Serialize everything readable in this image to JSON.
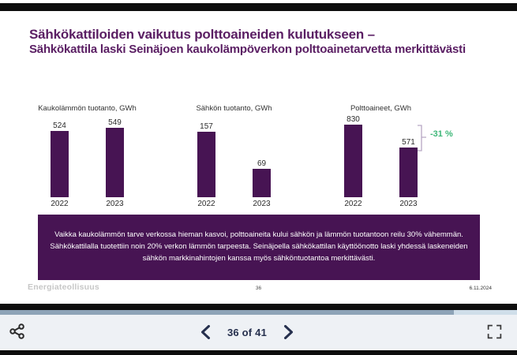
{
  "viewer": {
    "page_indicator": "36 of 41",
    "progress": {
      "current": 36,
      "total": 41
    },
    "icons": {
      "share": "share-icon",
      "prev": "chevron-left-icon",
      "next": "chevron-right-icon",
      "fullscreen": "fullscreen-icon"
    }
  },
  "slide": {
    "title_line1": "Sähkökattiloiden vaikutus polttoaineiden kulutukseen –",
    "title_line2": "Sähkökattila laski Seinäjoen kaukolämpöverkon polttoainetarvetta merkittävästi",
    "callout_text": "Vaikka kaukolämmön tarve verkossa hieman kasvoi, polttoaineita kului sähkön ja lämmön tuotantoon reilu 30% vähemmän. Sähkökattilalla tuotettiin noin 20% verkon lämmön tarpeesta. Seinäjoella sähkökattilan käyttöönotto laski yhdessä laskeneiden sähkön markkinahintojen kanssa myös sähköntuotantoa merkittävästi.",
    "footer": {
      "brand": "Energiateollisuus",
      "page_number": "36",
      "date": "6.11.2024"
    }
  },
  "chart_data": [
    {
      "type": "bar",
      "title": "Kaukolämmön tuotanto, GWh",
      "categories": [
        "2022",
        "2023"
      ],
      "values": [
        524,
        549
      ],
      "bar_color": "#471453",
      "legend": "none",
      "grid": false
    },
    {
      "type": "bar",
      "title": "Sähkön tuotanto, GWh",
      "categories": [
        "2022",
        "2023"
      ],
      "values": [
        157,
        69
      ],
      "bar_color": "#471453",
      "legend": "none",
      "grid": false
    },
    {
      "type": "bar",
      "title": "Polttoaineet, GWh",
      "categories": [
        "2022",
        "2023"
      ],
      "values": [
        830,
        571
      ],
      "bar_color": "#471453",
      "annotation": "-31 %",
      "annotation_color": "#3EB778",
      "legend": "none",
      "grid": false
    }
  ],
  "colors": {
    "title_purple": "#5A1E63",
    "bar_purple": "#471453",
    "callout_bg": "#471453",
    "accent_green": "#3EB778",
    "progress_fill": "#8da3b7",
    "progress_track": "#cfdee9",
    "toolbar_bg": "#eef1f5",
    "nav_text": "#26304e"
  }
}
